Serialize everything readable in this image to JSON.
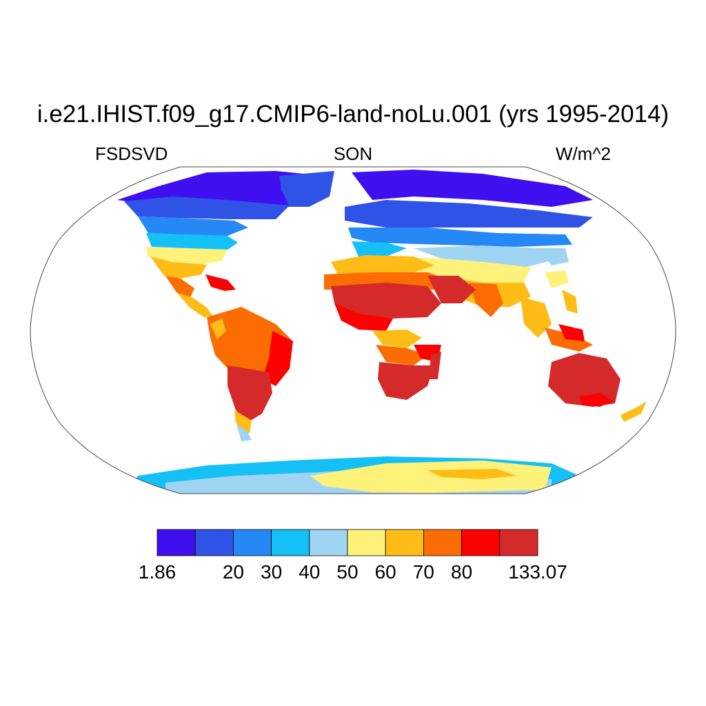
{
  "title": "i.e21.IHIST.f09_g17.CMIP6-land-noLu.001 (yrs 1995-2014)",
  "variable": "FSDSVD",
  "season": "SON",
  "units": "W/m^2",
  "colorbar": {
    "labels": [
      "1.86",
      "",
      "20",
      "30",
      "40",
      "50",
      "60",
      "70",
      "80",
      "",
      "133.07"
    ],
    "colors": [
      "#3f0ff0",
      "#2f53e6",
      "#2588f5",
      "#14c0f5",
      "#9fd5f2",
      "#fff27a",
      "#fdbd16",
      "#fb6d03",
      "#fd0000",
      "#d42a2a"
    ]
  },
  "chart_data": {
    "type": "heatmap",
    "projection": "Robinson",
    "field": "FSDSVD",
    "season": "SON",
    "units": "W/m^2",
    "range": [
      1.86,
      133.07
    ],
    "levels": [
      1.86,
      10,
      20,
      30,
      40,
      50,
      60,
      70,
      80,
      90,
      133.07
    ],
    "level_labels_shown": [
      "1.86",
      "20",
      "30",
      "40",
      "50",
      "60",
      "70",
      "80",
      "133.07"
    ],
    "regions": [
      {
        "name": "Arctic / northern high latitudes",
        "band": "1.86-30"
      },
      {
        "name": "North America mid-latitudes",
        "band": "30-50"
      },
      {
        "name": "Southern USA / Mexico",
        "band": "50-70"
      },
      {
        "name": "South America (Amazon)",
        "band": "70-80"
      },
      {
        "name": "South America (south-central)",
        "band": "90-133.07"
      },
      {
        "name": "Sahara / Arabia",
        "band": "80-133.07"
      },
      {
        "name": "Southern Africa",
        "band": "90-133.07"
      },
      {
        "name": "India / SE Asia",
        "band": "60-80"
      },
      {
        "name": "Australia",
        "band": "90-133.07"
      },
      {
        "name": "Antarctica interior",
        "band": "50-60"
      },
      {
        "name": "Antarctica coast",
        "band": "30-50"
      }
    ]
  }
}
